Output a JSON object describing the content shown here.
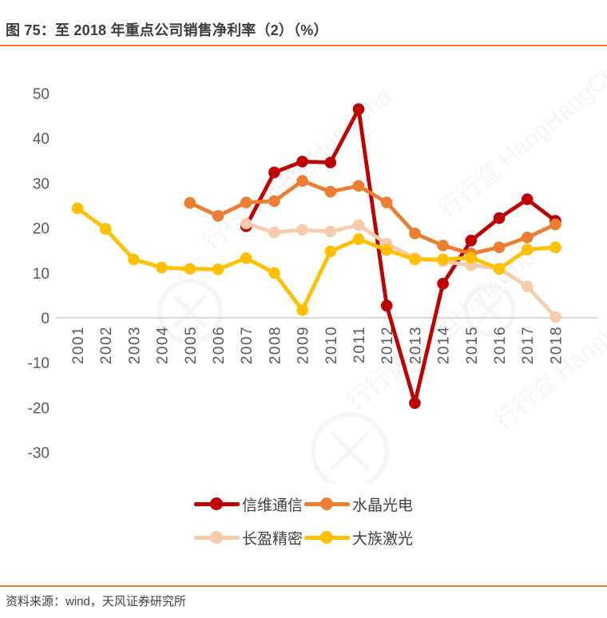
{
  "title": "图 75：至 2018 年重点公司销售净利率（2）（%）",
  "source": "资料来源：wind，天风证券研究所",
  "accent_color": "#ED7D31",
  "watermark": {
    "cn": "行行查",
    "en": "HangHangCha"
  },
  "chart_data": {
    "type": "line",
    "title": "至 2018 年重点公司销售净利率（2）（%）",
    "categories": [
      "2001",
      "2002",
      "2003",
      "2004",
      "2005",
      "2006",
      "2007",
      "2008",
      "2009",
      "2010",
      "2011",
      "2012",
      "2013",
      "2014",
      "2015",
      "2016",
      "2017",
      "2018"
    ],
    "series": [
      {
        "name": "信维通信",
        "color": "#C00000",
        "values": [
          null,
          null,
          null,
          null,
          null,
          null,
          20.4,
          32.4,
          34.8,
          34.6,
          46.5,
          2.7,
          -19.0,
          7.6,
          17.2,
          22.2,
          26.4,
          21.6
        ]
      },
      {
        "name": "水晶光电",
        "color": "#ED7D31",
        "values": [
          null,
          null,
          null,
          null,
          25.6,
          22.7,
          25.7,
          26.0,
          30.5,
          28.1,
          29.4,
          25.7,
          18.8,
          16.1,
          14.3,
          15.7,
          17.9,
          20.8
        ]
      },
      {
        "name": "长盈精密",
        "color": "#F8CBAD",
        "values": [
          null,
          null,
          null,
          null,
          null,
          null,
          21.0,
          19.0,
          19.6,
          19.2,
          20.7,
          16.5,
          13.3,
          12.6,
          11.7,
          11.0,
          7.0,
          0.2
        ]
      },
      {
        "name": "大族激光",
        "color": "#FFC000",
        "values": [
          24.4,
          19.8,
          13.0,
          11.2,
          10.9,
          10.8,
          13.3,
          10.0,
          1.7,
          14.8,
          17.5,
          15.1,
          13.0,
          13.0,
          13.4,
          10.9,
          15.2,
          15.7
        ]
      }
    ],
    "xlabel": "",
    "ylabel": "",
    "ylim": [
      -30,
      50
    ],
    "yticks": [
      50,
      40,
      30,
      20,
      10,
      0,
      -10,
      -20,
      -30
    ],
    "grid": "zero-line-only",
    "legend_position": "bottom",
    "x_tick_rotation": -90
  }
}
